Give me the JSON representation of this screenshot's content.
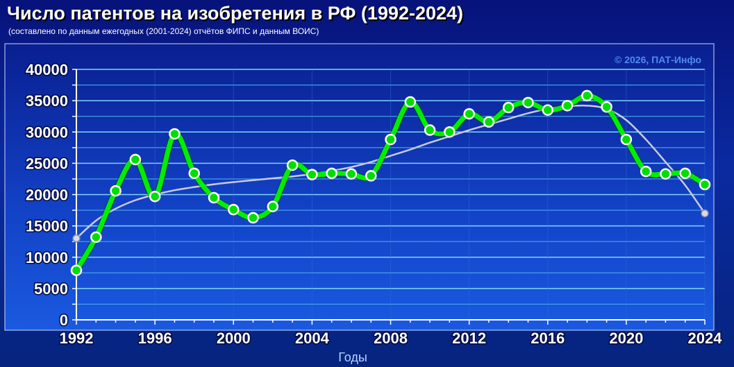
{
  "chart_data": {
    "type": "line",
    "title": "Число патентов на изобретения в РФ (1992-2024)",
    "subtitle": "(составлено по данным ежегодных (2001-2024) отчётов ФИПС и данным ВОИС)",
    "watermark": "© 2026, ПАТ-Инфо",
    "xlabel": "Годы",
    "ylabel": "",
    "ylim": [
      0,
      40000
    ],
    "xlim": [
      1992,
      2024
    ],
    "x_ticks": [
      "1992",
      "1996",
      "2000",
      "2004",
      "2008",
      "2012",
      "2016",
      "2020",
      "2024"
    ],
    "y_ticks": [
      "0",
      "5000",
      "10000",
      "15000",
      "20000",
      "25000",
      "30000",
      "35000",
      "40000"
    ],
    "grid": true,
    "x": [
      1992,
      1993,
      1994,
      1995,
      1996,
      1997,
      1998,
      1999,
      2000,
      2001,
      2002,
      2003,
      2004,
      2005,
      2006,
      2007,
      2008,
      2009,
      2010,
      2011,
      2012,
      2013,
      2014,
      2015,
      2016,
      2017,
      2018,
      2019,
      2020,
      2021,
      2022,
      2023,
      2024
    ],
    "series": [
      {
        "name": "",
        "role": "data",
        "color": "#00ee00",
        "values": [
          7900,
          13200,
          20600,
          25600,
          19700,
          29700,
          23400,
          19500,
          17600,
          16300,
          18100,
          24700,
          23200,
          23400,
          23300,
          23000,
          28800,
          34800,
          30300,
          29999,
          32900,
          31600,
          33900,
          34700,
          33500,
          34200,
          35800,
          34000,
          28800,
          23700,
          23300,
          23400,
          21600
        ]
      },
      {
        "name": "",
        "role": "trend",
        "color": "#c8ccdc",
        "values": [
          13000,
          15850,
          17750,
          19100,
          20000,
          20700,
          21200,
          21650,
          22000,
          22300,
          22600,
          22900,
          23300,
          23800,
          24400,
          25200,
          26200,
          27200,
          28300,
          29300,
          30300,
          31200,
          32100,
          33000,
          33700,
          34100,
          34200,
          33700,
          31900,
          28800,
          25200,
          21500,
          17000
        ]
      }
    ]
  }
}
